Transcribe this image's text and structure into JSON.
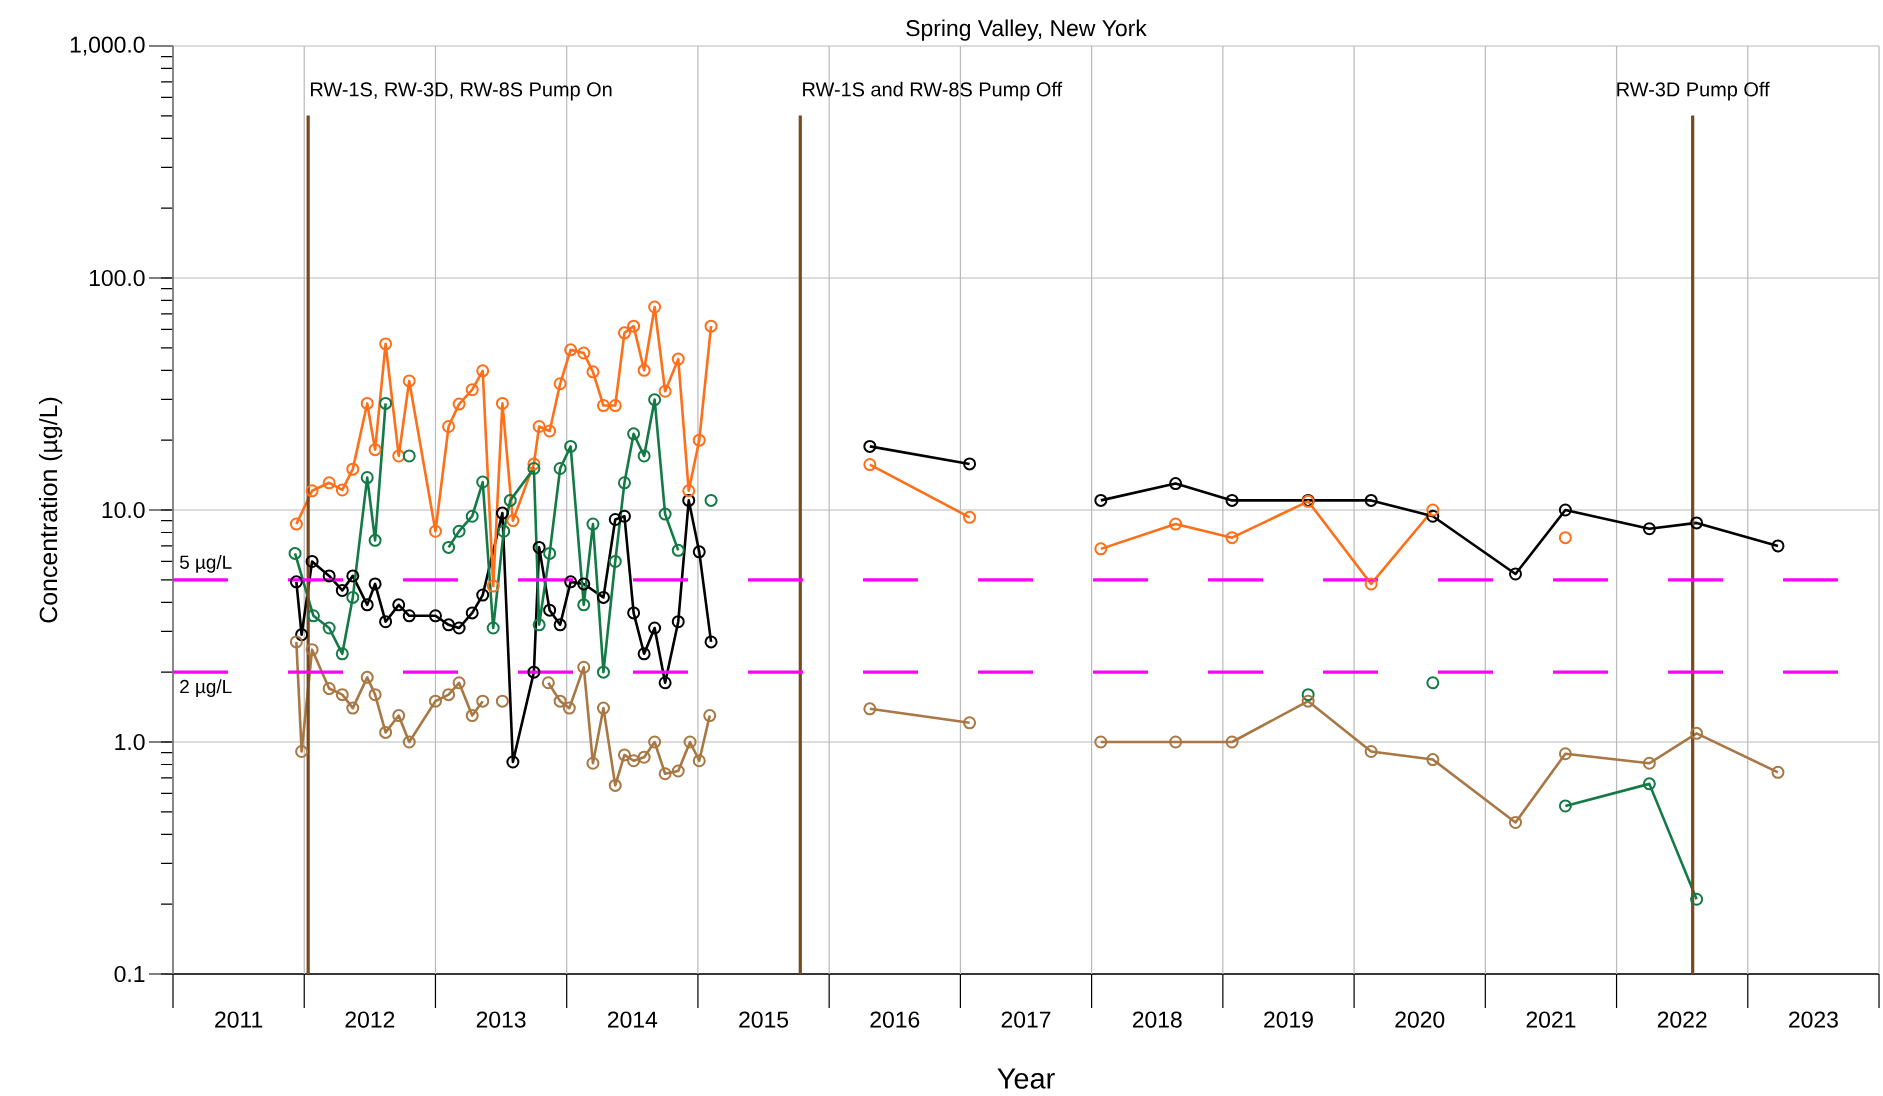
{
  "chart_data": {
    "type": "line",
    "title": "Spring Valley, New York",
    "xlabel": "Year",
    "ylabel": "Concentration (µg/L)",
    "xlim": [
      2011,
      2024
    ],
    "ylim": [
      0.1,
      1000
    ],
    "log": true,
    "grid": true,
    "marker": "circle",
    "xticks": [
      {
        "value": 2011.5,
        "label": "2011"
      },
      {
        "value": 2012.5,
        "label": "2012"
      },
      {
        "value": 2013.5,
        "label": "2013"
      },
      {
        "value": 2014.5,
        "label": "2014"
      },
      {
        "value": 2015.5,
        "label": "2015"
      },
      {
        "value": 2016.5,
        "label": "2016"
      },
      {
        "value": 2017.5,
        "label": "2017"
      },
      {
        "value": 2018.5,
        "label": "2018"
      },
      {
        "value": 2019.5,
        "label": "2019"
      },
      {
        "value": 2020.5,
        "label": "2020"
      },
      {
        "value": 2021.5,
        "label": "2021"
      },
      {
        "value": 2022.5,
        "label": "2022"
      },
      {
        "value": 2023.5,
        "label": "2023"
      },
      {
        "value": 2011,
        "label": null
      },
      {
        "value": 2012,
        "label": null
      },
      {
        "value": 2013,
        "label": null
      },
      {
        "value": 2014,
        "label": null
      },
      {
        "value": 2015,
        "label": null
      },
      {
        "value": 2016,
        "label": null
      },
      {
        "value": 2017,
        "label": null
      },
      {
        "value": 2018,
        "label": null
      },
      {
        "value": 2019,
        "label": null
      },
      {
        "value": 2020,
        "label": null
      },
      {
        "value": 2021,
        "label": null
      },
      {
        "value": 2022,
        "label": null
      },
      {
        "value": 2023,
        "label": null
      },
      {
        "value": 2024,
        "label": null
      }
    ],
    "yticks": [
      {
        "value": 0.1,
        "label": "0.1"
      },
      {
        "value": 1,
        "label": "1.0"
      },
      {
        "value": 10,
        "label": "10.0"
      },
      {
        "value": 100,
        "label": "100.0"
      },
      {
        "value": 1000,
        "label": "1,000.0"
      }
    ],
    "series": [
      {
        "color": "#000000",
        "x": [
          2011.94,
          2011.98,
          2012.06,
          2012.19,
          2012.29,
          2012.37,
          2012.48,
          2012.54,
          2012.62,
          2012.72,
          2012.8,
          2013.0,
          2013.1,
          2013.18,
          2013.28,
          2013.36,
          2013.51,
          2013.59,
          2013.75,
          2013.79,
          2013.87,
          2013.95,
          2014.03,
          2014.13,
          2014.28,
          2014.37,
          2014.44,
          2014.51,
          2014.59,
          2014.67,
          2014.75,
          2014.85,
          2014.93,
          2015.01,
          2015.1,
          2015.7,
          2016.31,
          2017.07,
          2017.6,
          2018.07,
          2018.64,
          2019.07,
          2019.65,
          2020.13,
          2020.6,
          2021.23,
          2021.61,
          2022.25,
          2022.61,
          2023.23
        ],
        "values": [
          4.9,
          2.9,
          6.0,
          5.2,
          4.5,
          5.2,
          3.9,
          4.8,
          3.3,
          3.9,
          3.5,
          3.5,
          3.2,
          3.1,
          3.6,
          4.3,
          9.7,
          0.82,
          2.0,
          6.9,
          3.7,
          3.2,
          4.9,
          4.8,
          4.2,
          9.1,
          9.4,
          3.6,
          2.4,
          3.1,
          1.8,
          3.3,
          11,
          6.6,
          2.7,
          null,
          18.8,
          15.8,
          null,
          11,
          13,
          11,
          11,
          11,
          9.4,
          5.3,
          10,
          8.3,
          8.8,
          7.0
        ]
      },
      {
        "color": "#ff6f1a",
        "x": [
          2011.94,
          2012.06,
          2012.19,
          2012.29,
          2012.37,
          2012.48,
          2012.54,
          2012.62,
          2012.72,
          2012.8,
          2013.0,
          2013.1,
          2013.18,
          2013.28,
          2013.36,
          2013.44,
          2013.51,
          2013.59,
          2013.75,
          2013.79,
          2013.87,
          2013.95,
          2014.03,
          2014.13,
          2014.2,
          2014.28,
          2014.37,
          2014.44,
          2014.51,
          2014.59,
          2014.67,
          2014.75,
          2014.85,
          2014.93,
          2015.01,
          2015.1,
          2015.7,
          2016.31,
          2017.07,
          2017.6,
          2018.07,
          2018.64,
          2019.07,
          2019.65,
          2020.13,
          2020.6,
          2021.0,
          2021.61
        ],
        "values": [
          8.7,
          12.1,
          13.1,
          12.2,
          15.0,
          28.8,
          18.2,
          52,
          17.1,
          36,
          8.1,
          22.9,
          28.6,
          33,
          39.8,
          4.7,
          28.8,
          9.0,
          15.8,
          22.9,
          21.9,
          35,
          49,
          47.5,
          39.4,
          28.2,
          28.2,
          58,
          62,
          40,
          75,
          32.5,
          44.7,
          12.1,
          20,
          62,
          null,
          15.7,
          9.3,
          null,
          6.8,
          8.7,
          7.6,
          10.9,
          4.8,
          10.0,
          null,
          7.6
        ]
      },
      {
        "color": "#137a46",
        "x": [
          2011.93,
          2012.07,
          2012.19,
          2012.29,
          2012.37,
          2012.48,
          2012.54,
          2012.62,
          2012.7,
          2012.8,
          2012.9,
          2013.1,
          2013.18,
          2013.28,
          2013.36,
          2013.44,
          2013.52,
          2013.57,
          2013.75,
          2013.79,
          2013.87,
          2013.95,
          2014.03,
          2014.13,
          2014.2,
          2014.28,
          2014.37,
          2014.44,
          2014.51,
          2014.59,
          2014.67,
          2014.75,
          2014.85,
          2015.0,
          2015.1,
          2016.0,
          2019.65,
          2020.0,
          2020.6,
          2021.0,
          2021.61,
          2022.25,
          2022.61
        ],
        "values": [
          6.5,
          3.5,
          3.1,
          2.4,
          4.2,
          13.8,
          7.4,
          28.8,
          null,
          17.1,
          null,
          6.9,
          8.1,
          9.4,
          13.2,
          3.1,
          8.1,
          11.0,
          15.1,
          3.2,
          6.5,
          15.1,
          18.8,
          3.9,
          8.7,
          2.0,
          6.0,
          13.1,
          21.3,
          17.1,
          29.9,
          9.6,
          6.7,
          null,
          11.0,
          null,
          1.6,
          null,
          1.8,
          null,
          0.53,
          0.66,
          0.21
        ]
      },
      {
        "color": "#a87744",
        "x": [
          2011.94,
          2011.98,
          2012.06,
          2012.19,
          2012.29,
          2012.37,
          2012.48,
          2012.54,
          2012.62,
          2012.72,
          2012.8,
          2013.0,
          2013.1,
          2013.18,
          2013.28,
          2013.36,
          2013.44,
          2013.51,
          2013.7,
          2013.86,
          2013.95,
          2014.02,
          2014.13,
          2014.2,
          2014.28,
          2014.37,
          2014.44,
          2014.51,
          2014.59,
          2014.67,
          2014.75,
          2014.85,
          2014.94,
          2015.01,
          2015.09,
          2015.7,
          2016.31,
          2017.07,
          2017.6,
          2018.07,
          2018.64,
          2019.07,
          2019.65,
          2020.13,
          2020.6,
          2021.23,
          2021.61,
          2022.25,
          2022.61,
          2023.23
        ],
        "values": [
          2.7,
          0.91,
          2.5,
          1.7,
          1.6,
          1.4,
          1.9,
          1.6,
          1.1,
          1.3,
          1.0,
          1.5,
          1.6,
          1.8,
          1.3,
          1.5,
          null,
          1.5,
          null,
          1.8,
          1.5,
          1.4,
          2.1,
          0.81,
          1.4,
          0.65,
          0.88,
          0.83,
          0.86,
          1.0,
          0.73,
          0.75,
          1.0,
          0.83,
          1.3,
          null,
          1.39,
          1.21,
          null,
          1.0,
          1.0,
          1.0,
          1.5,
          0.91,
          0.84,
          0.45,
          0.89,
          0.81,
          1.09,
          0.74
        ]
      }
    ],
    "ref_lines": [
      {
        "axis": "x",
        "value": 2012.03,
        "label": "RW-1S, RW-3D, RW-8S Pump On",
        "color": "#7a4a1e",
        "line_style": "solid"
      },
      {
        "axis": "x",
        "value": 2015.78,
        "label": "RW-1S and RW-8S Pump Off",
        "color": "#7a4a1e",
        "line_style": "solid"
      },
      {
        "axis": "x",
        "value": 2022.58,
        "label": "RW-3D Pump Off",
        "color": "#7a4a1e",
        "line_style": "solid"
      },
      {
        "axis": "y",
        "value": 5,
        "label": "5 µg/L",
        "color": "#ff00ff",
        "line_style": "dashed"
      },
      {
        "axis": "y",
        "value": 2,
        "label": "2 µg/L",
        "color": "#ff00ff",
        "line_style": "dashed"
      }
    ]
  }
}
